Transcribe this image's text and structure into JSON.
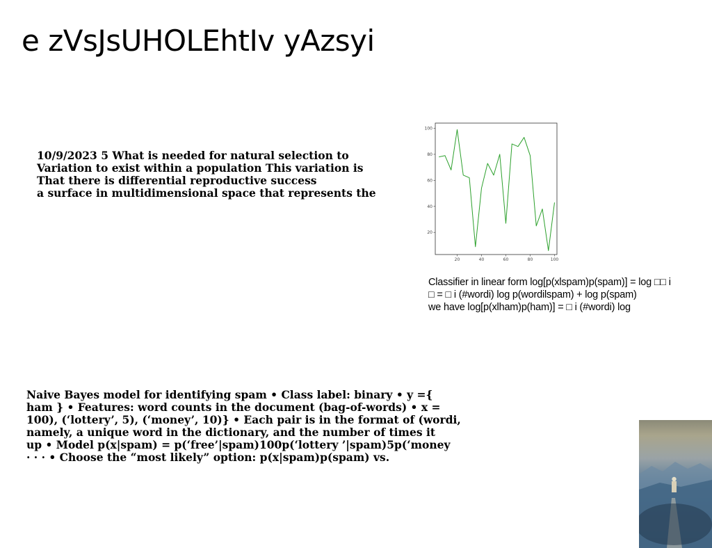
{
  "slide": {
    "title": "e zVsJsUHOLEhtIv yAzsyi",
    "block1": [
      "10/9/2023 5 What is needed for natural selection to",
      "Variation to exist within a population This variation is",
      "That there is differential reproductive success",
      "a surface in multidimensional space that represents the"
    ],
    "caption": [
      "Classifier in linear form log[p(xlspam)p(spam)] = log □□ i",
      "□ = □ i (#wordi) log p(wordilspam) + log p(spam)",
      "we have log[p(xlham)p(ham)] = □ i (#wordi) log"
    ],
    "block2": [
      "Naive Bayes model for identifying spam • Class label: binary • y ={",
      "ham } • Features: word counts in the document (bag-of-words) • x =",
      "100), (‘lottery’, 5), (‘money’, 10)} • Each pair is in the format of (wordi,",
      "namely, a unique word in the dictionary, and the number of times it",
      "up • Model p(x|spam) = p(‘free’|spam)100p(‘lottery ’|spam)5p(‘money",
      "· · · • Choose the “most likely” option: p(x|spam)p(spam) vs."
    ]
  },
  "chart_data": {
    "type": "line",
    "color": "#2ca02c",
    "xlim": [
      2,
      102
    ],
    "ylim": [
      3,
      104
    ],
    "xticks": [
      20,
      40,
      60,
      80,
      100
    ],
    "yticks": [
      20,
      40,
      60,
      80,
      100
    ],
    "x": [
      5,
      10,
      15,
      20,
      25,
      30,
      35,
      40,
      45,
      50,
      55,
      60,
      65,
      70,
      75,
      80,
      85,
      90,
      95,
      100
    ],
    "y": [
      78,
      79,
      68,
      99,
      64,
      62,
      9,
      54,
      73,
      64,
      80,
      27,
      88,
      86,
      93,
      79,
      25,
      38,
      6,
      43
    ]
  }
}
